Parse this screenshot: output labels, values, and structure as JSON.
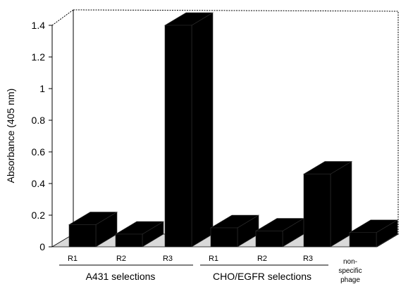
{
  "chart_data": {
    "type": "bar",
    "style": "3d",
    "ylabel": "Absorbance (405 nm)",
    "ylim": [
      0,
      1.4
    ],
    "yticks": [
      "0",
      "0.2",
      "0.4",
      "0.6",
      "0.8",
      "1",
      "1.2",
      "1.4"
    ],
    "categories": [
      {
        "label": "R1",
        "group": "A431 selections"
      },
      {
        "label": "R2",
        "group": "A431 selections"
      },
      {
        "label": "R3",
        "group": "A431 selections"
      },
      {
        "label": "R1",
        "group": "CHO/EGFR selections"
      },
      {
        "label": "R2",
        "group": "CHO/EGFR selections"
      },
      {
        "label": "R3",
        "group": "CHO/EGFR selections"
      },
      {
        "label": "non-specific phage",
        "group": ""
      }
    ],
    "nonspecific_label_lines": [
      "non-",
      "specific",
      "phage"
    ],
    "values": [
      0.14,
      0.08,
      1.4,
      0.12,
      0.1,
      0.46,
      0.09
    ],
    "groups": [
      "A431 selections",
      "CHO/EGFR selections"
    ],
    "bar_color": "#000000",
    "grid": false
  }
}
